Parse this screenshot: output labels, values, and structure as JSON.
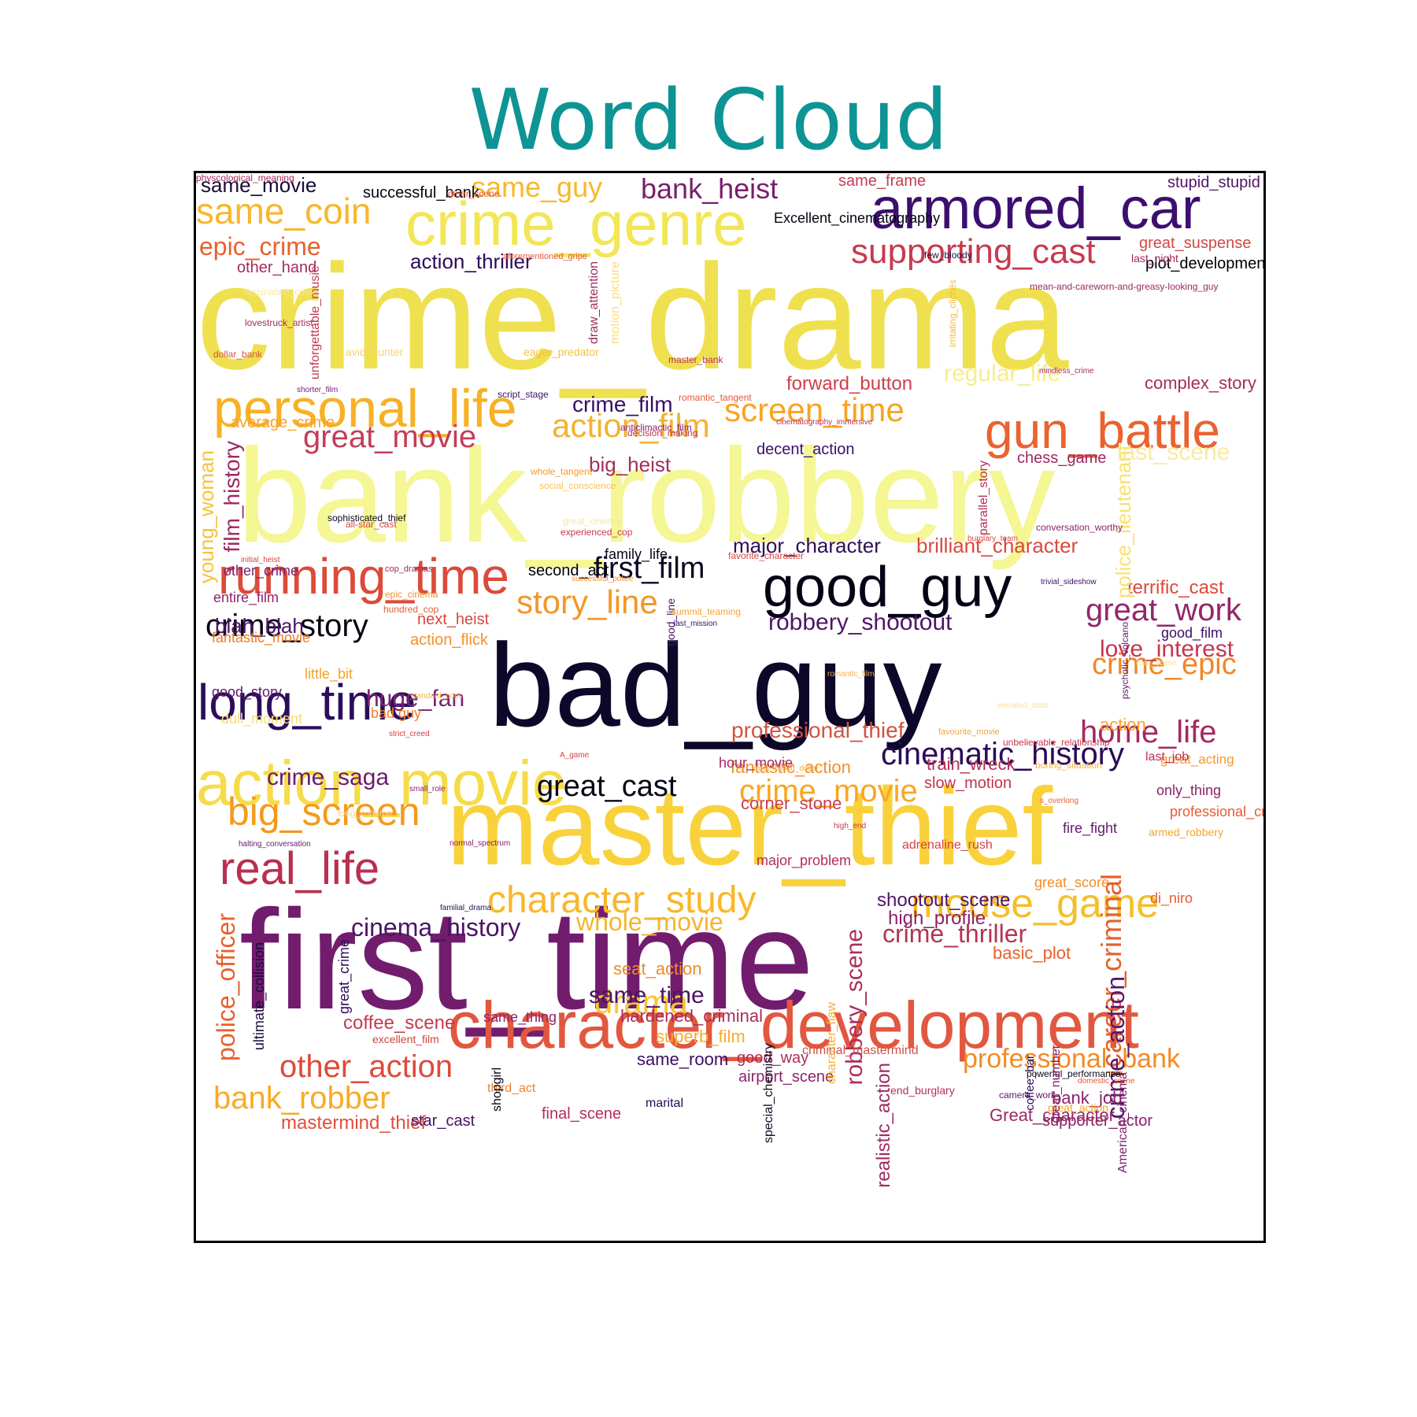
{
  "title": "Word Cloud",
  "colors": {
    "title": "#0e9494",
    "frame": "#000000"
  },
  "words": [
    {
      "text": "crime_drama",
      "color": "#efe04f"
    },
    {
      "text": "bank_robbery",
      "color": "#f5f694"
    },
    {
      "text": "bad_guy",
      "color": "#0d0829"
    },
    {
      "text": "first_time",
      "color": "#721c6e"
    },
    {
      "text": "master_thief",
      "color": "#f9d13b"
    },
    {
      "text": "action_movie",
      "color": "#f5dc48"
    },
    {
      "text": "armored_car",
      "color": "#3b0f6f"
    },
    {
      "text": "crime_genre",
      "color": "#f3e655"
    },
    {
      "text": "character_development",
      "color": "#e2573f"
    },
    {
      "text": "good_guy",
      "color": "#050417"
    },
    {
      "text": "gun_battle",
      "color": "#ea632f"
    },
    {
      "text": "personal_life",
      "color": "#f7b125"
    },
    {
      "text": "running_time",
      "color": "#dc4a3a"
    },
    {
      "text": "long_time",
      "color": "#2c0d5c"
    },
    {
      "text": "real_life",
      "color": "#b8304f"
    },
    {
      "text": "mouse_game",
      "color": "#f6be28"
    },
    {
      "text": "big_screen",
      "color": "#f39a1c"
    },
    {
      "text": "crime_story",
      "color": "#080614"
    },
    {
      "text": "character_study",
      "color": "#f9b72a"
    },
    {
      "text": "bank_heist",
      "color": "#7a1f6d"
    },
    {
      "text": "supporting_cast",
      "color": "#c83a4f"
    },
    {
      "text": "same_coin",
      "color": "#f7b72c"
    },
    {
      "text": "screen_time",
      "color": "#f8a423"
    },
    {
      "text": "action_film",
      "color": "#f4b230"
    },
    {
      "text": "great_movie",
      "color": "#c23e5a"
    },
    {
      "text": "great_work",
      "color": "#93266a"
    },
    {
      "text": "crime_epic",
      "color": "#f28628"
    },
    {
      "text": "home_life",
      "color": "#a52860"
    },
    {
      "text": "story_line",
      "color": "#f39628"
    },
    {
      "text": "first_film",
      "color": "#0b0724"
    },
    {
      "text": "cinematic_history",
      "color": "#2b0b58"
    },
    {
      "text": "crime_movie",
      "color": "#f8a721"
    },
    {
      "text": "great_cast",
      "color": "#0a0616"
    },
    {
      "text": "other_action",
      "color": "#dc4b3b"
    },
    {
      "text": "bank_robber",
      "color": "#f7ab26"
    },
    {
      "text": "professional_bank",
      "color": "#f48b24"
    },
    {
      "text": "career_criminal",
      "color": "#e5612f"
    },
    {
      "text": "drama",
      "color": "#f9c52f"
    },
    {
      "text": "crime_thriller",
      "color": "#b43355"
    },
    {
      "text": "whole_movie",
      "color": "#f5b52f"
    },
    {
      "text": "cinema_history",
      "color": "#4b1567"
    },
    {
      "text": "same_guy",
      "color": "#f7b82c"
    },
    {
      "text": "epic_crime",
      "color": "#e8602e"
    },
    {
      "text": "regular_life",
      "color": "#f8ec8e"
    },
    {
      "text": "crime_film",
      "color": "#3a0e66"
    },
    {
      "text": "robbery_shootout",
      "color": "#4f1567"
    },
    {
      "text": "huge_fan",
      "color": "#7c2270"
    },
    {
      "text": "police_officer",
      "color": "#e8602e"
    },
    {
      "text": "robbery_scene",
      "color": "#ab2e5c"
    },
    {
      "text": "same_time",
      "color": "#4a1468"
    },
    {
      "text": "crime_saga",
      "color": "#6c1d6e"
    },
    {
      "text": "crime_action",
      "color": "#5a176a"
    },
    {
      "text": "love_interest",
      "color": "#c53652"
    },
    {
      "text": "last_scene",
      "color": "#f9eaa0"
    },
    {
      "text": "major_character",
      "color": "#2f0e5c"
    },
    {
      "text": "brilliant_character",
      "color": "#d84a3e"
    },
    {
      "text": "terrific_cast",
      "color": "#da4b3c"
    },
    {
      "text": "action_thriller",
      "color": "#2d0b5a"
    },
    {
      "text": "forward_button",
      "color": "#cf3e4b"
    },
    {
      "text": "complex_story",
      "color": "#a42c5f"
    },
    {
      "text": "big_heist",
      "color": "#a02e60"
    },
    {
      "text": "film_history",
      "color": "#9c2862"
    },
    {
      "text": "young_woman",
      "color": "#f8c23a"
    },
    {
      "text": "police_lieutenant",
      "color": "#f9e170"
    },
    {
      "text": "blah_blah",
      "color": "#4a1568"
    },
    {
      "text": "professional_thief",
      "color": "#d05342"
    },
    {
      "text": "fantastic_action",
      "color": "#f3902a"
    },
    {
      "text": "action",
      "color": "#f6a12a"
    },
    {
      "text": "train_wreck",
      "color": "#b33158"
    },
    {
      "text": "slow_motion",
      "color": "#c13451"
    },
    {
      "text": "corner_stone",
      "color": "#c74052"
    },
    {
      "text": "coffee_scene",
      "color": "#c33b53"
    },
    {
      "text": "shootout_scene",
      "color": "#4f1569"
    },
    {
      "text": "high_profile",
      "color": "#8b2369"
    },
    {
      "text": "basic_plot",
      "color": "#e7602d"
    },
    {
      "text": "seat_action",
      "color": "#f28a26"
    },
    {
      "text": "hardened_criminal",
      "color": "#aa2c5d"
    },
    {
      "text": "superb_film",
      "color": "#f7ab2a"
    },
    {
      "text": "same_room",
      "color": "#3c0d65"
    },
    {
      "text": "good_way",
      "color": "#ad2e5c"
    },
    {
      "text": "airport_scene",
      "color": "#8f246a"
    },
    {
      "text": "mastermind_thief",
      "color": "#df4f3c"
    },
    {
      "text": "final_scene",
      "color": "#b52f55"
    },
    {
      "text": "star_cast",
      "color": "#4a1269"
    },
    {
      "text": "supporter_actor",
      "color": "#88226a"
    },
    {
      "text": "Great_character",
      "color": "#9a2965"
    },
    {
      "text": "bank_job",
      "color": "#8c2369"
    },
    {
      "text": "realistic_action",
      "color": "#9f2a62"
    },
    {
      "text": "stupid_stupid",
      "color": "#521467"
    },
    {
      "text": "same_frame",
      "color": "#c33d51"
    },
    {
      "text": "great_suspense",
      "color": "#d14943"
    },
    {
      "text": "plot_development",
      "color": "#000004"
    },
    {
      "text": "Excellent_cinematography",
      "color": "#04030f"
    },
    {
      "text": "other_hand",
      "color": "#a42c60"
    },
    {
      "text": "same_movie",
      "color": "#170c38"
    },
    {
      "text": "successful_bank",
      "color": "#080512"
    },
    {
      "text": "chess_game",
      "color": "#9d2866"
    },
    {
      "text": "decent_action",
      "color": "#3b0f6a"
    },
    {
      "text": "average_crime",
      "color": "#f5a42a"
    },
    {
      "text": "other_crime",
      "color": "#7a1f6d"
    },
    {
      "text": "second_act",
      "color": "#000004"
    },
    {
      "text": "family_life",
      "color": "#0a0618"
    },
    {
      "text": "next_heist",
      "color": "#d34b3f"
    },
    {
      "text": "action_flick",
      "color": "#f3922a"
    },
    {
      "text": "entire_film",
      "color": "#92246a"
    },
    {
      "text": "good_film",
      "color": "#3b0e67"
    },
    {
      "text": "fantastic_movie",
      "color": "#ef7b27"
    },
    {
      "text": "little_bit",
      "color": "#f6a328"
    },
    {
      "text": "good_story",
      "color": "#5d166b"
    },
    {
      "text": "dull_moment",
      "color": "#f8dd72"
    },
    {
      "text": "bad guy",
      "color": "#f08226"
    },
    {
      "text": "hour_movie",
      "color": "#9c2863"
    },
    {
      "text": "major_problem",
      "color": "#b42e55"
    },
    {
      "text": "professional_criminal",
      "color": "#e45b35"
    },
    {
      "text": "only_thing",
      "color": "#892269"
    },
    {
      "text": "great_acting",
      "color": "#f2982c"
    },
    {
      "text": "adrenaline_rush",
      "color": "#d34340"
    },
    {
      "text": "fire_fight",
      "color": "#61176b"
    },
    {
      "text": "great_score",
      "color": "#f28f27"
    },
    {
      "text": "di_niro",
      "color": "#e45c34"
    },
    {
      "text": "last_job",
      "color": "#bf3153"
    },
    {
      "text": "armed_robbery",
      "color": "#f6a32a"
    },
    {
      "text": "same_thing",
      "color": "#8c2369"
    },
    {
      "text": "third_act",
      "color": "#f28328"
    },
    {
      "text": "end_burglary",
      "color": "#b63056"
    },
    {
      "text": "great_action",
      "color": "#f7a72a"
    },
    {
      "text": "camera_work",
      "color": "#5b186a"
    },
    {
      "text": "marital",
      "color": "#270a52"
    },
    {
      "text": "powerful_performance",
      "color": "#0e081f"
    },
    {
      "text": "ultimate_collision",
      "color": "#1a0c40"
    },
    {
      "text": "great_crime",
      "color": "#2f0c5c"
    },
    {
      "text": "shopgirl",
      "color": "#050313"
    },
    {
      "text": "excellent_film",
      "color": "#d0443f"
    },
    {
      "text": "criminal_mastermind",
      "color": "#d04f44"
    },
    {
      "text": "character_flaw",
      "color": "#f5b032"
    },
    {
      "text": "special_chemistry",
      "color": "#100a24"
    },
    {
      "text": "great_number",
      "color": "#851f69"
    },
    {
      "text": "American_cinema",
      "color": "#7b1f6d"
    },
    {
      "text": "coffee_bar",
      "color": "#2a0b57"
    },
    {
      "text": "draw_attention",
      "color": "#a2295f"
    },
    {
      "text": "motion_picture",
      "color": "#f8df7a"
    },
    {
      "text": "unforgettable_music",
      "color": "#c23950"
    },
    {
      "text": "parallel_story",
      "color": "#b43056"
    },
    {
      "text": "good_line",
      "color": "#4a1668"
    },
    {
      "text": "diner_scene",
      "color": "#e2583c"
    },
    {
      "text": "last_night",
      "color": "#a32a5f"
    },
    {
      "text": "few_bloody",
      "color": "#1e0b45"
    },
    {
      "text": "aforementioned_gripe",
      "color": "#e2583b"
    },
    {
      "text": "fascinating_crime",
      "color": "#f9e7a0"
    },
    {
      "text": "lovestruck_artist",
      "color": "#a52c5e"
    },
    {
      "text": "irritating_clichés",
      "color": "#f7b93a"
    },
    {
      "text": "mean-and-careworn-and-greasy-looking_guy",
      "color": "#9b2866"
    },
    {
      "text": "dollar_bank",
      "color": "#d85540"
    },
    {
      "text": "avid_hunter",
      "color": "#f7d277"
    },
    {
      "text": "eager_predator",
      "color": "#f5c045"
    },
    {
      "text": "master_bank",
      "color": "#b63154"
    },
    {
      "text": "mindless_crime",
      "color": "#a72a5e"
    },
    {
      "text": "shorter_film",
      "color": "#6f1d6d"
    },
    {
      "text": "script_stage",
      "color": "#3d1065"
    },
    {
      "text": "romantic_tangent",
      "color": "#e55839"
    },
    {
      "text": "anticlimactic_film",
      "color": "#8b216b"
    },
    {
      "text": "cinematography_immersive",
      "color": "#b83054"
    },
    {
      "text": "decision_making",
      "color": "#c2384f"
    },
    {
      "text": "whole_tangent",
      "color": "#f19a33"
    },
    {
      "text": "social_conscience",
      "color": "#f8c35a"
    },
    {
      "text": "sophisticated_thief",
      "color": "#0a0618"
    },
    {
      "text": "all-star_cast",
      "color": "#cf4747"
    },
    {
      "text": "great_cinema",
      "color": "#f8e6a2"
    },
    {
      "text": "experienced_cop",
      "color": "#c6384f"
    },
    {
      "text": "conversation_worthy",
      "color": "#8d236a"
    },
    {
      "text": "burglary_team",
      "color": "#d64a40"
    },
    {
      "text": "favorite_character",
      "color": "#d54442"
    },
    {
      "text": "initial_heist",
      "color": "#d64441"
    },
    {
      "text": "cop_dramas",
      "color": "#9e2a62"
    },
    {
      "text": "successful_police",
      "color": "#f28b2e"
    },
    {
      "text": "trivial_sideshow",
      "color": "#3c0f65"
    },
    {
      "text": "epic_cinema",
      "color": "#f19132"
    },
    {
      "text": "hundred_cop",
      "color": "#e55e39"
    },
    {
      "text": "summit_teaming",
      "color": "#f5a430"
    },
    {
      "text": "last_mission",
      "color": "#3a0f63"
    },
    {
      "text": "psychotic_volcano",
      "color": "#5e1769"
    },
    {
      "text": "cafe_scene",
      "color": "#f8e58b"
    },
    {
      "text": "romantic_film",
      "color": "#f4b14a"
    },
    {
      "text": "standard_cops",
      "color": "#f3b542"
    },
    {
      "text": "elevated_state",
      "color": "#f7e0a0"
    },
    {
      "text": "strict_creed",
      "color": "#d2404a"
    },
    {
      "text": "favourite_movie",
      "color": "#f3a542"
    },
    {
      "text": "unbelievable_relationship",
      "color": "#c6394f"
    },
    {
      "text": "boring_situation",
      "color": "#f6b04b"
    },
    {
      "text": "A_game",
      "color": "#d3453f"
    },
    {
      "text": "small_role",
      "color": "#8e2269"
    },
    {
      "text": "s_overlong",
      "color": "#e75e35"
    },
    {
      "text": "long_runtime",
      "color": "#f8d88f"
    },
    {
      "text": "multi-million_dollar",
      "color": "#f3ac44"
    },
    {
      "text": "high_end",
      "color": "#c33c4e"
    },
    {
      "text": "normal_spectrum",
      "color": "#8b2369"
    },
    {
      "text": "halting_conversation",
      "color": "#5d1a6b"
    },
    {
      "text": "familial_drama",
      "color": "#2c0c58"
    },
    {
      "text": "domestic_scene",
      "color": "#e6583b"
    },
    {
      "text": "physcological_meaning",
      "color": "#a62b5e"
    }
  ]
}
